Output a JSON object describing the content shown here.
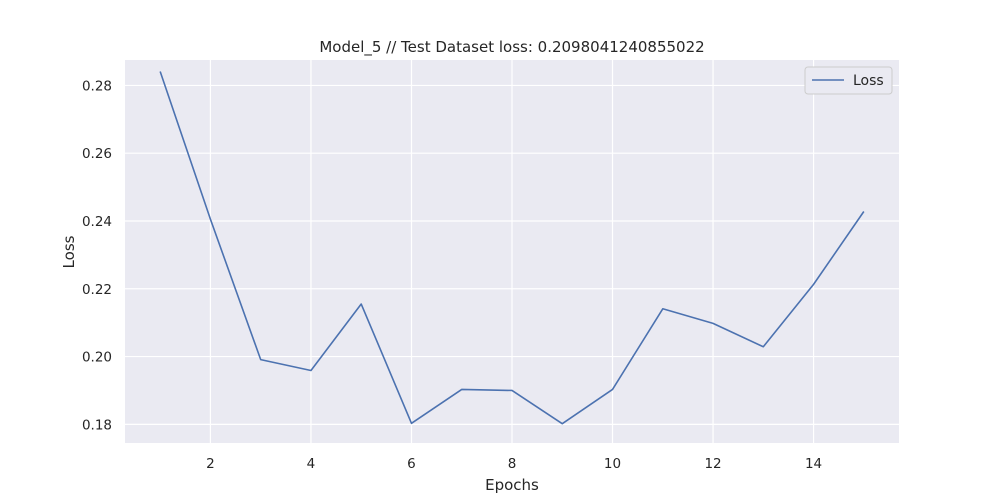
{
  "chart_data": {
    "type": "line",
    "title": "Model_5 // Test Dataset loss: 0.2098041240855022",
    "xlabel": "Epochs",
    "ylabel": "Loss",
    "xlim": [
      0.3,
      15.7
    ],
    "ylim": [
      0.1745,
      0.2875
    ],
    "xticks": [
      2,
      4,
      6,
      8,
      10,
      12,
      14
    ],
    "yticks": [
      0.18,
      0.2,
      0.22,
      0.24,
      0.26,
      0.28
    ],
    "ytick_labels": [
      "0.18",
      "0.20",
      "0.22",
      "0.24",
      "0.26",
      "0.28"
    ],
    "grid": true,
    "legend_position": "top-right",
    "series": [
      {
        "name": "Loss",
        "color": "#4c72b0",
        "x": [
          1,
          2,
          3,
          4,
          5,
          6,
          7,
          8,
          9,
          10,
          11,
          12,
          13,
          14,
          15
        ],
        "y": [
          0.2841,
          0.2405,
          0.1991,
          0.1959,
          0.2155,
          0.1803,
          0.1903,
          0.19,
          0.1802,
          0.1903,
          0.2141,
          0.2098,
          0.2029,
          0.2213,
          0.2428
        ]
      }
    ]
  },
  "colors": {
    "plot_background": "#eaeaf2",
    "grid": "#ffffff"
  }
}
